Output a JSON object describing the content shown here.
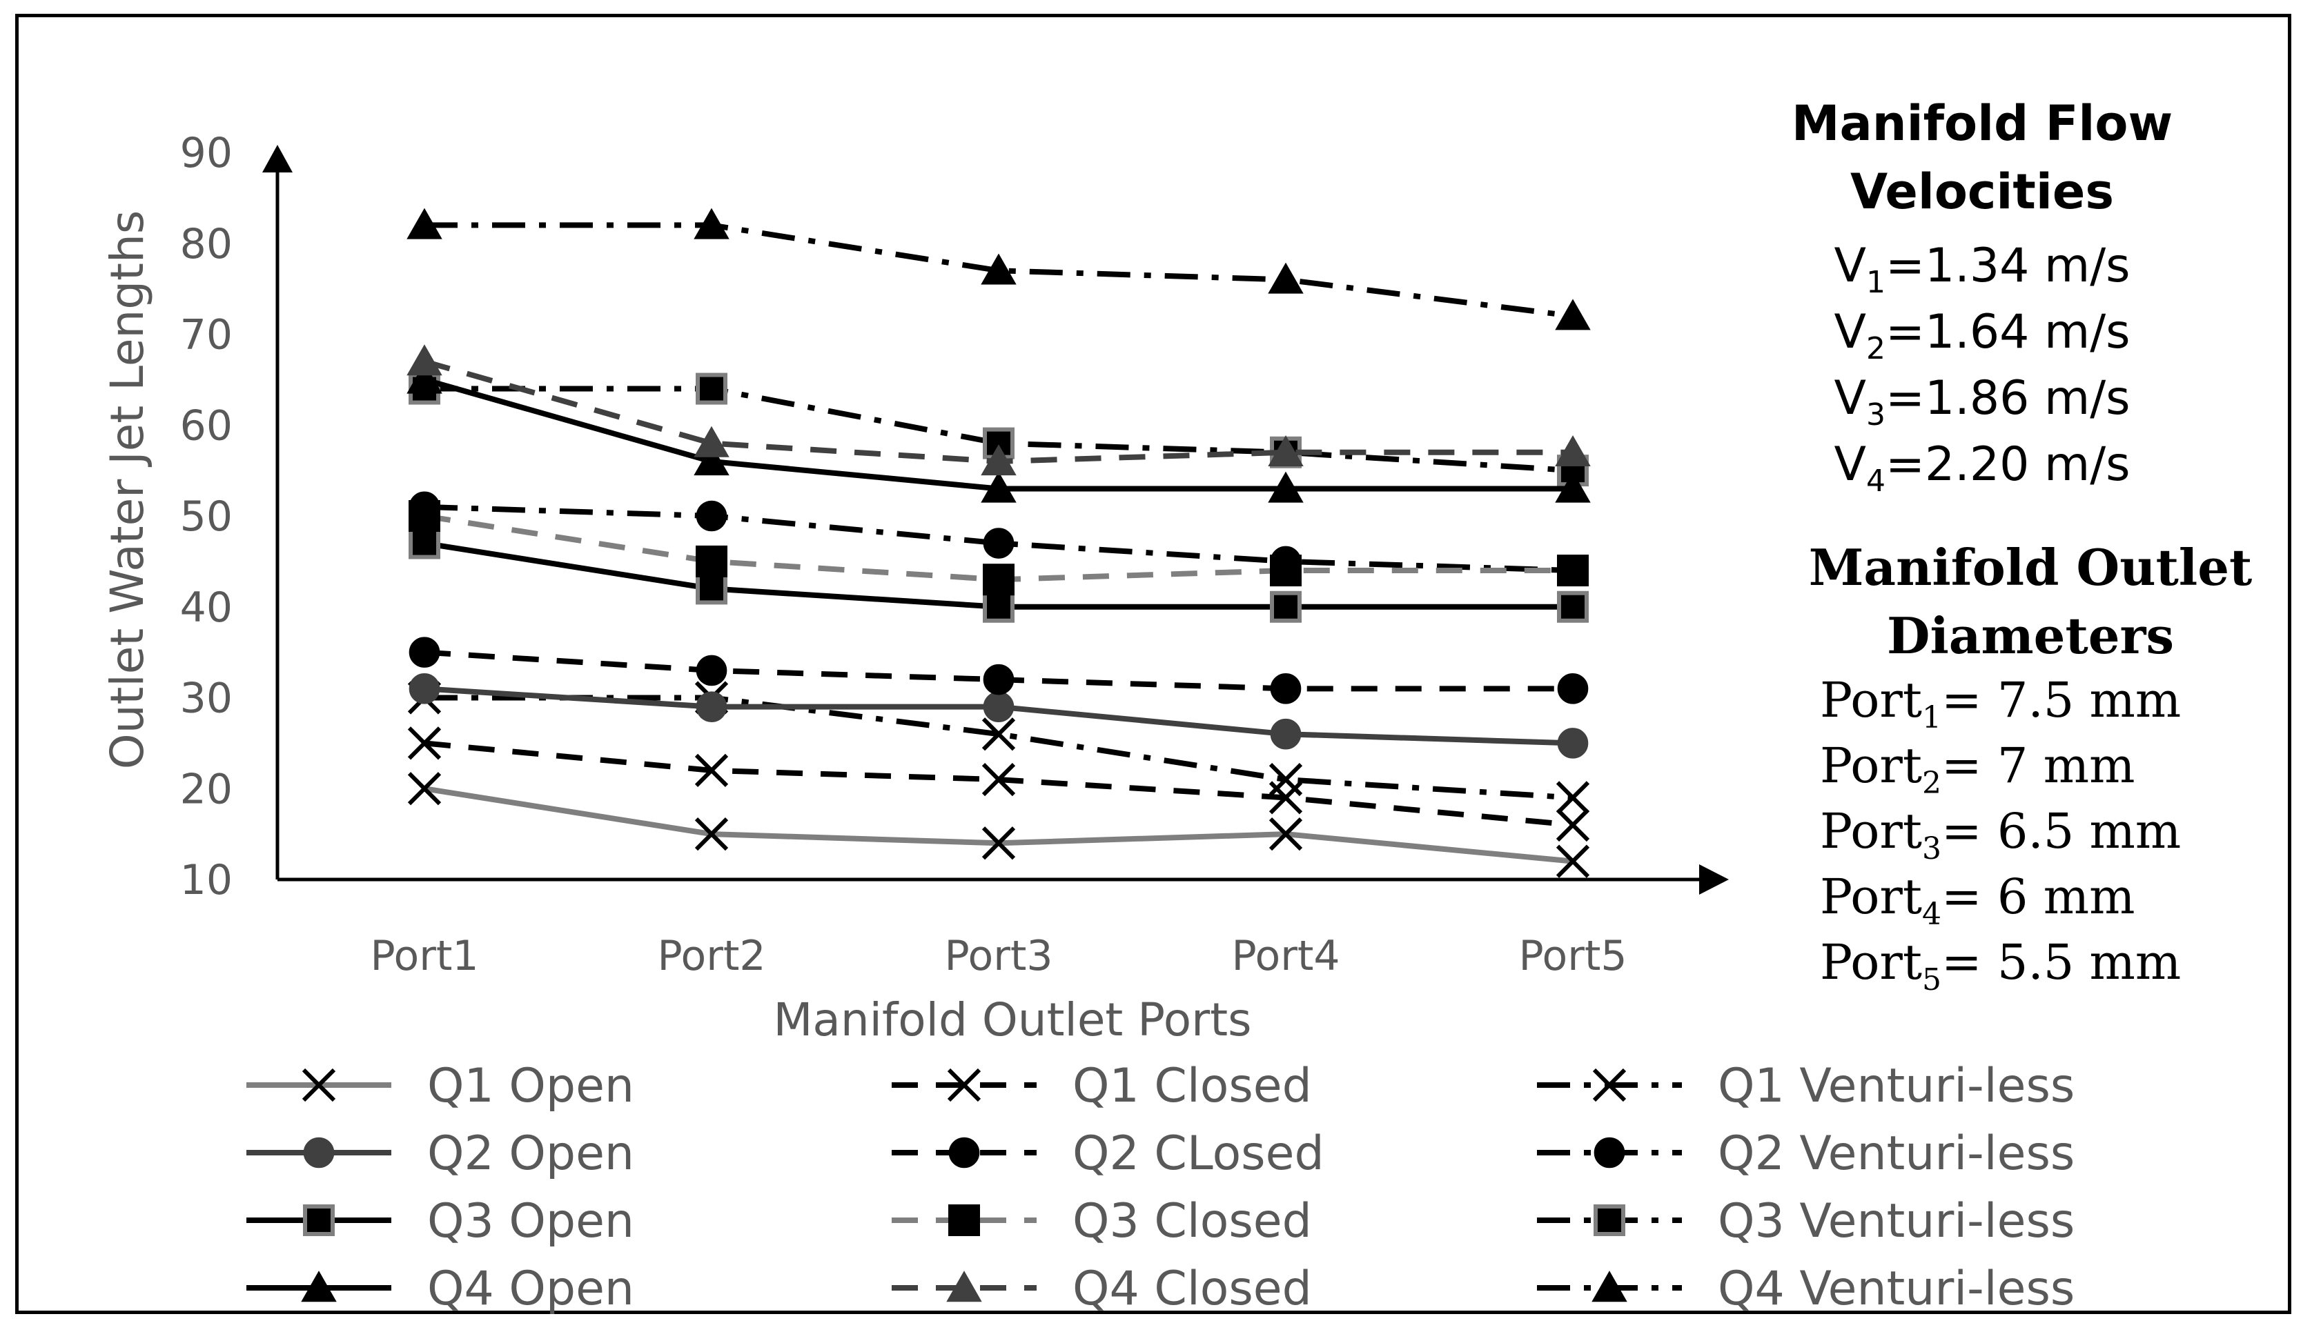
{
  "chart_data": {
    "type": "line",
    "title": "",
    "xlabel": "Manifold Outlet Ports",
    "ylabel": "Outlet Water Jet Lengths",
    "ylim": [
      10,
      90
    ],
    "yticks": [
      10,
      20,
      30,
      40,
      50,
      60,
      70,
      80,
      90
    ],
    "categories": [
      "Port1",
      "Port2",
      "Port3",
      "Port4",
      "Port5"
    ],
    "series": [
      {
        "name": "Q1 Open",
        "values": [
          20,
          15,
          14,
          15,
          12
        ],
        "marker": "x",
        "line": "solid",
        "color": "#7f7f7f",
        "markerColor": "#000000"
      },
      {
        "name": "Q1 Closed",
        "values": [
          25,
          22,
          21,
          19,
          16
        ],
        "marker": "x",
        "line": "dash",
        "color": "#000000",
        "markerColor": "#000000"
      },
      {
        "name": "Q1 Venturi-less",
        "values": [
          30,
          30,
          26,
          21,
          19
        ],
        "marker": "x",
        "line": "dashdot",
        "color": "#000000",
        "markerColor": "#000000"
      },
      {
        "name": "Q2 Open",
        "values": [
          31,
          29,
          29,
          26,
          25
        ],
        "marker": "circle",
        "line": "solid",
        "color": "#404040",
        "markerColor": "#404040"
      },
      {
        "name": "Q2 CLosed",
        "values": [
          35,
          33,
          32,
          31,
          31
        ],
        "marker": "circle",
        "line": "dash",
        "color": "#000000",
        "markerColor": "#000000"
      },
      {
        "name": "Q2 Venturi-less",
        "values": [
          51,
          50,
          47,
          45,
          44
        ],
        "marker": "circle",
        "line": "dashdot",
        "color": "#000000",
        "markerColor": "#000000"
      },
      {
        "name": "Q3 Open",
        "values": [
          47,
          42,
          40,
          40,
          40
        ],
        "marker": "square",
        "line": "solid",
        "color": "#000000",
        "markerColor": "#000000",
        "markerStroke": "#7f7f7f"
      },
      {
        "name": "Q3 Closed",
        "values": [
          50,
          45,
          43,
          44,
          44
        ],
        "marker": "square",
        "line": "dash",
        "color": "#7f7f7f",
        "markerColor": "#000000"
      },
      {
        "name": "Q3 Venturi-less",
        "values": [
          64,
          64,
          58,
          57,
          55
        ],
        "marker": "square",
        "line": "dashdot",
        "color": "#000000",
        "markerColor": "#000000",
        "markerStroke": "#7f7f7f"
      },
      {
        "name": "Q4 Open",
        "values": [
          65,
          56,
          53,
          53,
          53
        ],
        "marker": "triangle",
        "line": "solid",
        "color": "#000000",
        "markerColor": "#000000"
      },
      {
        "name": "Q4 Closed",
        "values": [
          67,
          58,
          56,
          57,
          57
        ],
        "marker": "triangle",
        "line": "dash",
        "color": "#404040",
        "markerColor": "#404040"
      },
      {
        "name": "Q4 Venturi-less",
        "values": [
          82,
          82,
          77,
          76,
          72
        ],
        "marker": "triangle",
        "line": "dashdot",
        "color": "#000000",
        "markerColor": "#000000"
      }
    ],
    "grid": false,
    "legend": "bottom"
  },
  "panel": {
    "velocity_heading_1": "Manifold Flow",
    "velocity_heading_2": "Velocities",
    "velocities": [
      {
        "symbol": "V",
        "sub": "1",
        "value": "=1.34 m/s"
      },
      {
        "symbol": "V",
        "sub": "2",
        "value": "=1.64 m/s"
      },
      {
        "symbol": "V",
        "sub": "3",
        "value": "=1.86 m/s"
      },
      {
        "symbol": "V",
        "sub": "4",
        "value": "=2.20 m/s"
      }
    ],
    "diameter_heading_1": "Manifold Outlet",
    "diameter_heading_2": "Diameters",
    "diameters": [
      {
        "symbol": "Port",
        "sub": "1",
        "value": "= 7.5 mm"
      },
      {
        "symbol": "Port",
        "sub": "2",
        "value": "= 7 mm"
      },
      {
        "symbol": "Port",
        "sub": "3",
        "value": "= 6.5 mm"
      },
      {
        "symbol": "Port",
        "sub": "4",
        "value": "= 6 mm"
      },
      {
        "symbol": "Port",
        "sub": "5",
        "value": "= 5.5 mm"
      }
    ]
  }
}
